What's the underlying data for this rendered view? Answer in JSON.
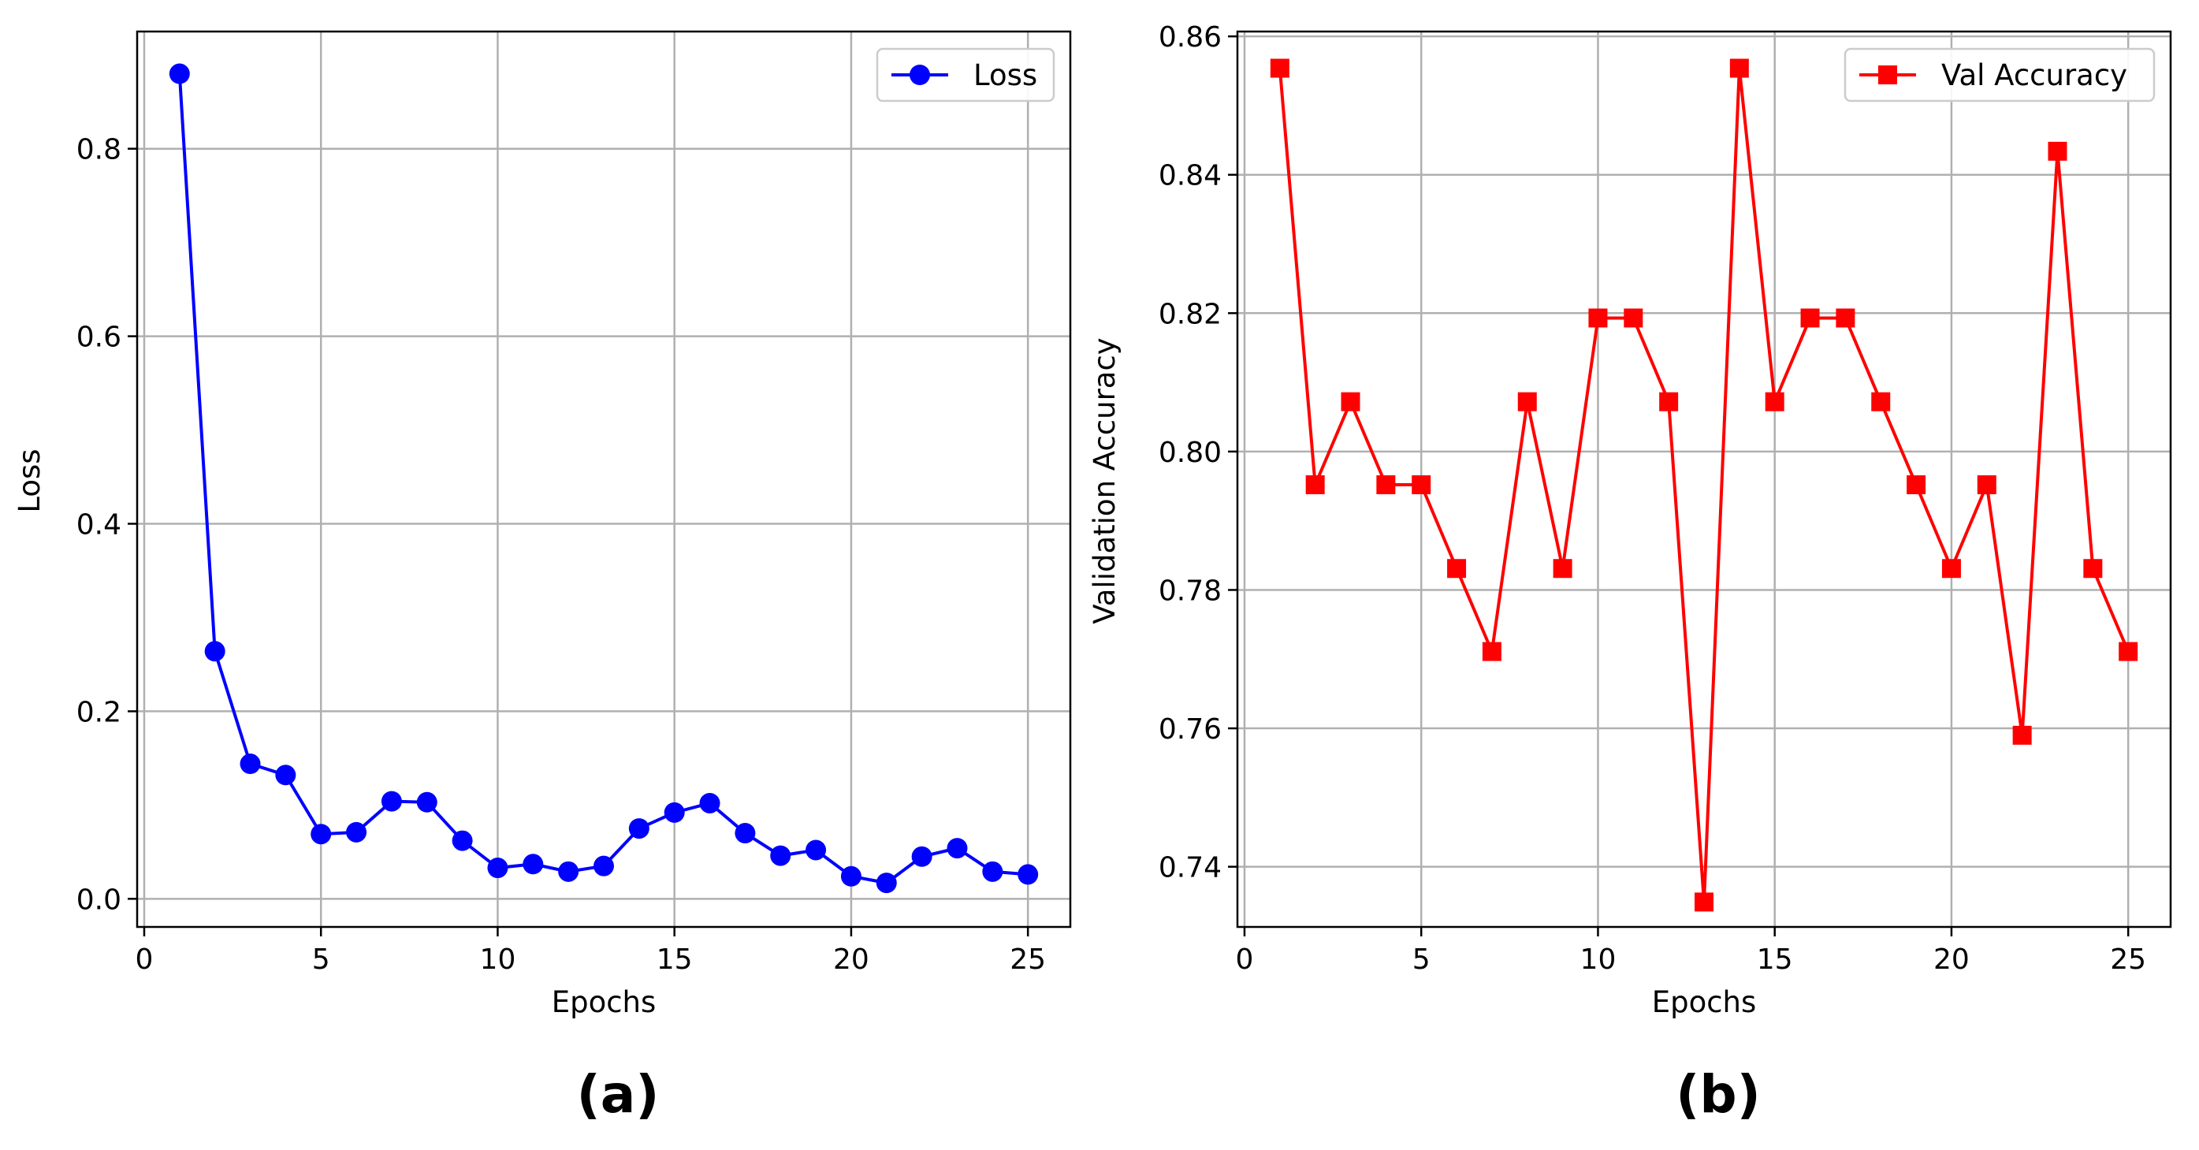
{
  "panels": [
    {
      "label": "(a)"
    },
    {
      "label": "(b)"
    }
  ],
  "chart_data": [
    {
      "type": "line",
      "title": "",
      "xlabel": "Epochs",
      "ylabel": "Loss",
      "xlim": [
        -0.2,
        26.2
      ],
      "ylim": [
        -0.03,
        0.925
      ],
      "xticks": [
        0,
        5,
        10,
        15,
        20,
        25
      ],
      "xtick_labels": [
        "0",
        "5",
        "10",
        "15",
        "20",
        "25"
      ],
      "yticks": [
        0.0,
        0.2,
        0.4,
        0.6,
        0.8
      ],
      "ytick_labels": [
        "0.0",
        "0.2",
        "0.4",
        "0.6",
        "0.8"
      ],
      "grid": true,
      "legend_position": "top-right",
      "series": [
        {
          "name": "Loss",
          "color": "#0000ff",
          "marker": "circle",
          "x": [
            1,
            2,
            3,
            4,
            5,
            6,
            7,
            8,
            9,
            10,
            11,
            12,
            13,
            14,
            15,
            16,
            17,
            18,
            19,
            20,
            21,
            22,
            23,
            24,
            25
          ],
          "values": [
            0.88,
            0.264,
            0.144,
            0.132,
            0.069,
            0.071,
            0.104,
            0.103,
            0.062,
            0.033,
            0.037,
            0.029,
            0.035,
            0.075,
            0.092,
            0.102,
            0.07,
            0.046,
            0.052,
            0.024,
            0.017,
            0.045,
            0.054,
            0.029,
            0.026
          ]
        }
      ]
    },
    {
      "type": "line",
      "title": "",
      "xlabel": "Epochs",
      "ylabel": "Validation Accuracy",
      "xlim": [
        -0.2,
        26.2
      ],
      "ylim": [
        0.7313,
        0.8607
      ],
      "xticks": [
        0,
        5,
        10,
        15,
        20,
        25
      ],
      "xtick_labels": [
        "0",
        "5",
        "10",
        "15",
        "20",
        "25"
      ],
      "yticks": [
        0.74,
        0.76,
        0.78,
        0.8,
        0.82,
        0.84,
        0.86
      ],
      "ytick_labels": [
        "0.74",
        "0.76",
        "0.78",
        "0.80",
        "0.82",
        "0.84",
        "0.86"
      ],
      "grid": true,
      "legend_position": "top-right",
      "series": [
        {
          "name": "Val Accuracy",
          "color": "#ff0000",
          "marker": "square",
          "x": [
            1,
            2,
            3,
            4,
            5,
            6,
            7,
            8,
            9,
            10,
            11,
            12,
            13,
            14,
            15,
            16,
            17,
            18,
            19,
            20,
            21,
            22,
            23,
            24,
            25
          ],
          "values": [
            0.8554,
            0.7952,
            0.8072,
            0.7952,
            0.7952,
            0.7831,
            0.7711,
            0.8072,
            0.7831,
            0.8193,
            0.8193,
            0.8072,
            0.7349,
            0.8554,
            0.8072,
            0.8193,
            0.8193,
            0.8072,
            0.7952,
            0.7831,
            0.7952,
            0.759,
            0.8434,
            0.7831,
            0.7711
          ]
        }
      ]
    }
  ]
}
